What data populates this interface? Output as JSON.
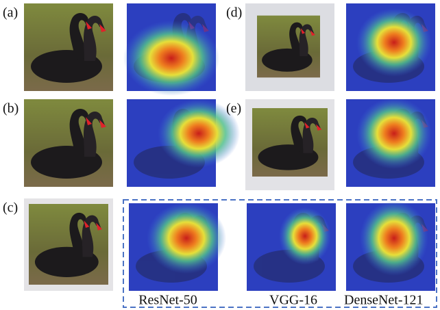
{
  "panels": [
    {
      "label": "(a)"
    },
    {
      "label": "(b)"
    },
    {
      "label": "(c)"
    },
    {
      "label": "(d)"
    },
    {
      "label": "(e)"
    }
  ],
  "models": [
    "ResNet-50",
    "VGG-16",
    "DenseNet-121"
  ]
}
